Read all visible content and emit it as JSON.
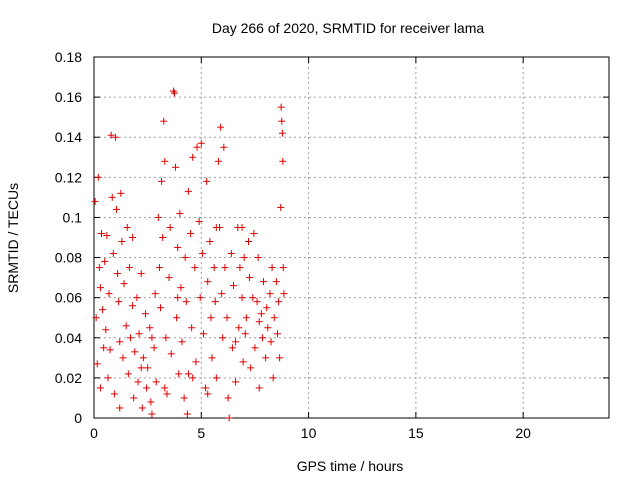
{
  "chart_data": {
    "type": "scatter",
    "title": "Day 266 of 2020, SRMTID for receiver lama",
    "xlabel": "GPS time / hours",
    "ylabel": "SRMTID / TECUs",
    "xlim": [
      0,
      24
    ],
    "ylim": [
      0,
      0.18
    ],
    "xticks": [
      "0",
      "5",
      "10",
      "15",
      "20"
    ],
    "xtick_values": [
      0,
      5,
      10,
      15,
      20
    ],
    "yticks": [
      "0",
      "0.02",
      "0.04",
      "0.06",
      "0.08",
      "0.1",
      "0.12",
      "0.14",
      "0.16",
      "0.18"
    ],
    "ytick_values": [
      0,
      0.02,
      0.04,
      0.06,
      0.08,
      0.1,
      0.12,
      0.14,
      0.16,
      0.18
    ],
    "grid": true,
    "marker": "+",
    "color": "#e00000",
    "series": [
      {
        "name": "SRMTID",
        "points": [
          [
            0.05,
            0.108
          ],
          [
            0.1,
            0.05
          ],
          [
            0.15,
            0.027
          ],
          [
            0.2,
            0.12
          ],
          [
            0.25,
            0.075
          ],
          [
            0.3,
            0.065
          ],
          [
            0.35,
            0.092
          ],
          [
            0.4,
            0.054
          ],
          [
            0.45,
            0.035
          ],
          [
            0.5,
            0.078
          ],
          [
            0.55,
            0.044
          ],
          [
            0.6,
            0.091
          ],
          [
            0.65,
            0.02
          ],
          [
            0.7,
            0.062
          ],
          [
            0.75,
            0.034
          ],
          [
            0.8,
            0.141
          ],
          [
            0.85,
            0.11
          ],
          [
            0.9,
            0.082
          ],
          [
            0.95,
            0.012
          ],
          [
            1.0,
            0.14
          ],
          [
            1.05,
            0.104
          ],
          [
            1.1,
            0.072
          ],
          [
            1.15,
            0.058
          ],
          [
            1.2,
            0.005
          ],
          [
            1.25,
            0.112
          ],
          [
            1.3,
            0.088
          ],
          [
            1.35,
            0.03
          ],
          [
            1.4,
            0.067
          ],
          [
            1.5,
            0.046
          ],
          [
            1.55,
            0.095
          ],
          [
            1.6,
            0.022
          ],
          [
            1.65,
            0.075
          ],
          [
            1.7,
            0.04
          ],
          [
            1.8,
            0.056
          ],
          [
            1.85,
            0.01
          ],
          [
            1.9,
            0.033
          ],
          [
            2.0,
            0.06
          ],
          [
            2.05,
            0.018
          ],
          [
            2.1,
            0.042
          ],
          [
            2.2,
            0.072
          ],
          [
            2.25,
            0.005
          ],
          [
            2.3,
            0.03
          ],
          [
            2.4,
            0.052
          ],
          [
            2.45,
            0.015
          ],
          [
            2.5,
            0.025
          ],
          [
            2.6,
            0.045
          ],
          [
            2.65,
            0.008
          ],
          [
            2.7,
            0.002
          ],
          [
            2.8,
            0.035
          ],
          [
            2.85,
            0.062
          ],
          [
            2.9,
            0.018
          ],
          [
            3.0,
            0.1
          ],
          [
            3.05,
            0.075
          ],
          [
            3.1,
            0.055
          ],
          [
            3.15,
            0.118
          ],
          [
            3.2,
            0.09
          ],
          [
            3.25,
            0.148
          ],
          [
            3.3,
            0.128
          ],
          [
            3.35,
            0.04
          ],
          [
            3.4,
            0.012
          ],
          [
            3.5,
            0.07
          ],
          [
            3.55,
            0.095
          ],
          [
            3.6,
            0.032
          ],
          [
            3.7,
            0.163
          ],
          [
            3.75,
            0.162
          ],
          [
            3.8,
            0.125
          ],
          [
            3.85,
            0.05
          ],
          [
            3.9,
            0.085
          ],
          [
            3.95,
            0.022
          ],
          [
            4.0,
            0.102
          ],
          [
            4.05,
            0.065
          ],
          [
            4.1,
            0.038
          ],
          [
            4.2,
            0.01
          ],
          [
            4.25,
            0.08
          ],
          [
            4.3,
            0.058
          ],
          [
            4.35,
            0.002
          ],
          [
            4.4,
            0.113
          ],
          [
            4.5,
            0.092
          ],
          [
            4.55,
            0.045
          ],
          [
            4.6,
            0.13
          ],
          [
            4.7,
            0.075
          ],
          [
            4.75,
            0.028
          ],
          [
            4.8,
            0.135
          ],
          [
            4.9,
            0.098
          ],
          [
            4.95,
            0.06
          ],
          [
            5.0,
            0.137
          ],
          [
            5.05,
            0.082
          ],
          [
            5.1,
            0.042
          ],
          [
            5.2,
            0.015
          ],
          [
            5.25,
            0.118
          ],
          [
            5.3,
            0.068
          ],
          [
            5.4,
            0.088
          ],
          [
            5.45,
            0.05
          ],
          [
            5.5,
            0.03
          ],
          [
            5.6,
            0.075
          ],
          [
            5.65,
            0.058
          ],
          [
            5.7,
            0.02
          ],
          [
            5.8,
            0.128
          ],
          [
            5.85,
            0.095
          ],
          [
            5.9,
            0.145
          ],
          [
            5.95,
            0.062
          ],
          [
            6.0,
            0.04
          ],
          [
            6.05,
            0.135
          ],
          [
            6.1,
            0.075
          ],
          [
            6.2,
            0.05
          ],
          [
            6.25,
            0.01
          ],
          [
            6.3,
            0.0
          ],
          [
            6.4,
            0.082
          ],
          [
            6.45,
            0.035
          ],
          [
            6.5,
            0.066
          ],
          [
            6.6,
            0.018
          ],
          [
            6.7,
            0.095
          ],
          [
            6.75,
            0.045
          ],
          [
            6.8,
            0.075
          ],
          [
            6.9,
            0.06
          ],
          [
            6.95,
            0.028
          ],
          [
            7.0,
            0.08
          ],
          [
            7.05,
            0.042
          ],
          [
            7.1,
            0.05
          ],
          [
            7.2,
            0.088
          ],
          [
            7.25,
            0.07
          ],
          [
            7.3,
            0.025
          ],
          [
            7.4,
            0.06
          ],
          [
            7.45,
            0.092
          ],
          [
            7.5,
            0.035
          ],
          [
            7.6,
            0.058
          ],
          [
            7.65,
            0.08
          ],
          [
            7.7,
            0.015
          ],
          [
            7.8,
            0.052
          ],
          [
            7.85,
            0.04
          ],
          [
            7.9,
            0.068
          ],
          [
            8.0,
            0.03
          ],
          [
            8.05,
            0.055
          ],
          [
            8.1,
            0.045
          ],
          [
            8.2,
            0.062
          ],
          [
            8.25,
            0.038
          ],
          [
            8.3,
            0.075
          ],
          [
            8.35,
            0.02
          ],
          [
            8.4,
            0.05
          ],
          [
            8.5,
            0.068
          ],
          [
            8.55,
            0.042
          ],
          [
            8.6,
            0.058
          ],
          [
            8.65,
            0.03
          ],
          [
            8.7,
            0.105
          ],
          [
            8.72,
            0.155
          ],
          [
            8.75,
            0.148
          ],
          [
            8.78,
            0.142
          ],
          [
            8.8,
            0.128
          ],
          [
            8.82,
            0.075
          ],
          [
            8.85,
            0.062
          ],
          [
            0.3,
            0.015
          ],
          [
            1.2,
            0.038
          ],
          [
            2.2,
            0.025
          ],
          [
            3.3,
            0.015
          ],
          [
            4.4,
            0.022
          ],
          [
            5.3,
            0.012
          ],
          [
            6.6,
            0.038
          ],
          [
            7.7,
            0.048
          ],
          [
            2.7,
            0.04
          ],
          [
            3.9,
            0.06
          ],
          [
            1.8,
            0.09
          ],
          [
            5.7,
            0.095
          ],
          [
            6.9,
            0.095
          ],
          [
            4.6,
            0.02
          ]
        ]
      }
    ]
  }
}
